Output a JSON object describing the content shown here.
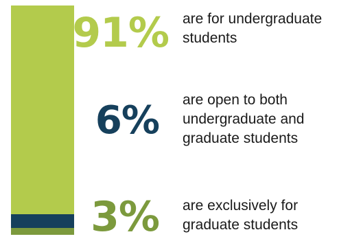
{
  "chart_data": {
    "type": "bar",
    "stacked": true,
    "categories": [
      "undergraduate",
      "both",
      "graduate"
    ],
    "values": [
      91,
      6,
      3
    ],
    "unit": "%",
    "labels": [
      "91%",
      "6%",
      "3%"
    ],
    "descriptions": [
      [
        "are for undergraduate",
        "students"
      ],
      [
        "are open to both",
        "undergraduate and",
        "graduate students"
      ],
      [
        "are exclusively for",
        "graduate students"
      ]
    ],
    "colors": [
      "#b3cb4c",
      "#16405c",
      "#7c9a3d"
    ],
    "label_colors": [
      "#b3cb4c",
      "#16405c",
      "#7c9a3d"
    ],
    "title": "",
    "xlabel": "",
    "ylabel": ""
  }
}
